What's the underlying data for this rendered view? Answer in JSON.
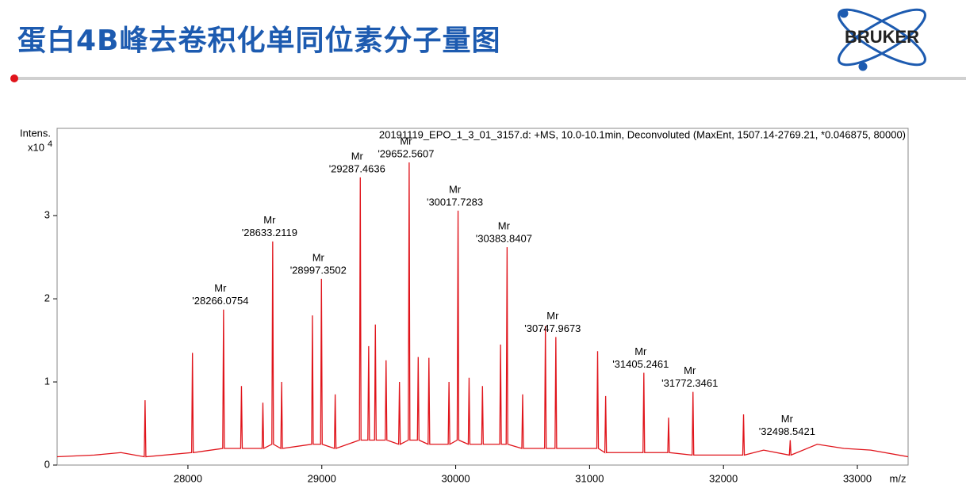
{
  "slide": {
    "title": "蛋白4B峰去卷积化单同位素分子量图",
    "logo": "BRUKER"
  },
  "chart_data": {
    "type": "line",
    "subtitle": "20191119_EPO_1_3_01_3157.d: +MS, 10.0-10.1min, Deconvoluted (MaxEnt, 1507.14-2769.21, *0.046875, 80000)",
    "y_label": "Intens.",
    "y_scale_base": "x10",
    "y_scale_exponent": "4",
    "x_label": "m/z",
    "xlim": [
      27023,
      33379
    ],
    "ylim": [
      0,
      4.05
    ],
    "xticks": [
      28000,
      29000,
      30000,
      31000,
      32000,
      33000
    ],
    "yticks": [
      0,
      1,
      2,
      3
    ],
    "grid": false,
    "series": [
      {
        "color": "#e0141b",
        "x": [
          27023,
          27300,
          27500,
          27674,
          27680,
          27686,
          28028,
          28034,
          28040,
          28260,
          28266.0754,
          28272,
          28394,
          28400,
          28406,
          28554,
          28560,
          28566,
          28627,
          28633.2119,
          28639,
          28694,
          28700,
          28706,
          28924,
          28930,
          28936,
          28991,
          28997.3502,
          29003,
          29094,
          29100,
          29106,
          29281,
          29287.4636,
          29293,
          29344,
          29350,
          29356,
          29394,
          29400,
          29406,
          29474,
          29480,
          29486,
          29574,
          29580,
          29586,
          29646,
          29652.5607,
          29658,
          29714,
          29720,
          29726,
          29794,
          29800,
          29806,
          29944,
          29950,
          29956,
          30011,
          30017.7283,
          30023,
          30094,
          30100,
          30106,
          30194,
          30200,
          30206,
          30329,
          30335,
          30341,
          30377,
          30383.8407,
          30389,
          30494,
          30500,
          30506,
          30664,
          30670,
          30676,
          30742,
          30747.9673,
          30754,
          31054,
          31060,
          31066,
          31114,
          31120,
          31126,
          31399,
          31405.2461,
          31411,
          31584,
          31590,
          31596,
          31766,
          31772.3461,
          31778,
          32144,
          32150,
          32156,
          32300,
          32492,
          32498.5421,
          32504,
          32700,
          32900,
          33100,
          33379
        ],
        "values": [
          0.1,
          0.12,
          0.15,
          0.1,
          0.78,
          0.1,
          0.15,
          1.35,
          0.15,
          0.2,
          1.87,
          0.2,
          0.2,
          0.95,
          0.2,
          0.2,
          0.75,
          0.2,
          0.25,
          2.69,
          0.25,
          0.2,
          1.0,
          0.2,
          0.25,
          1.8,
          0.25,
          0.25,
          2.24,
          0.25,
          0.2,
          0.85,
          0.2,
          0.3,
          3.46,
          0.3,
          0.3,
          1.43,
          0.3,
          0.3,
          1.69,
          0.3,
          0.3,
          1.26,
          0.3,
          0.25,
          1.0,
          0.25,
          0.3,
          3.64,
          0.3,
          0.3,
          1.3,
          0.3,
          0.25,
          1.29,
          0.25,
          0.25,
          1.0,
          0.25,
          0.3,
          3.06,
          0.3,
          0.25,
          1.05,
          0.25,
          0.25,
          0.95,
          0.25,
          0.25,
          1.45,
          0.25,
          0.25,
          2.62,
          0.25,
          0.2,
          0.85,
          0.2,
          0.2,
          1.67,
          0.2,
          0.2,
          1.54,
          0.2,
          0.2,
          1.37,
          0.2,
          0.15,
          0.83,
          0.15,
          0.15,
          1.11,
          0.15,
          0.15,
          0.57,
          0.15,
          0.12,
          0.88,
          0.12,
          0.12,
          0.61,
          0.12,
          0.18,
          0.12,
          0.3,
          0.12,
          0.25,
          0.2,
          0.18,
          0.1
        ]
      }
    ],
    "annotations": [
      {
        "x": 28266.0754,
        "y": 1.87,
        "text": [
          "Mr",
          "'28266.0754"
        ]
      },
      {
        "x": 28633.2119,
        "y": 2.69,
        "text": [
          "Mr",
          "'28633.2119"
        ]
      },
      {
        "x": 28997.3502,
        "y": 2.24,
        "text": [
          "Mr",
          "'28997.3502"
        ]
      },
      {
        "x": 29287.4636,
        "y": 3.46,
        "text": [
          "Mr",
          "'29287.4636"
        ]
      },
      {
        "x": 29652.5607,
        "y": 3.64,
        "text": [
          "Mr",
          "'29652.5607"
        ]
      },
      {
        "x": 30017.7283,
        "y": 3.06,
        "text": [
          "Mr",
          "'30017.7283"
        ]
      },
      {
        "x": 30383.8407,
        "y": 2.62,
        "text": [
          "Mr",
          "'30383.8407"
        ]
      },
      {
        "x": 30747.9673,
        "y": 1.54,
        "text": [
          "Mr",
          "'30747.9673"
        ]
      },
      {
        "x": 31405.2461,
        "y": 1.11,
        "text": [
          "Mr",
          "'31405.2461"
        ]
      },
      {
        "x": 31772.3461,
        "y": 0.88,
        "text": [
          "Mr",
          "'31772.3461"
        ]
      },
      {
        "x": 32498.5421,
        "y": 0.3,
        "text": [
          "Mr",
          "'32498.5421"
        ]
      }
    ]
  }
}
